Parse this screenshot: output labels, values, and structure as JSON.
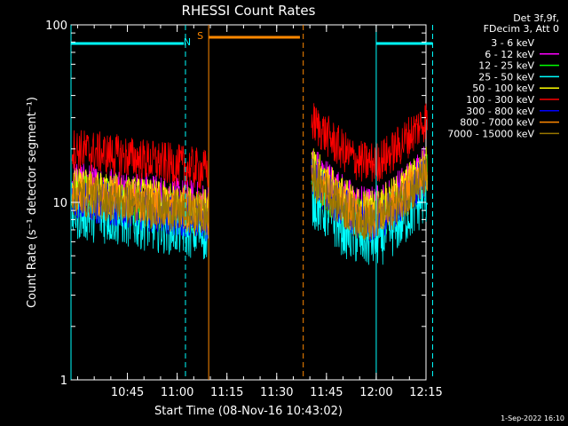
{
  "chart_data": {
    "type": "line",
    "title": "RHESSI Count Rates",
    "xlabel": "Start Time (08-Nov-16 10:43:02)",
    "ylabel": "Count Rate (s⁻¹ detector segment⁻¹)",
    "y_scale": "log",
    "ylim": [
      1,
      100
    ],
    "xlim_minutes": [
      628,
      735
    ],
    "x_ticks": [
      {
        "label": "10:45",
        "min": 645
      },
      {
        "label": "11:00",
        "min": 660
      },
      {
        "label": "11:15",
        "min": 675
      },
      {
        "label": "11:30",
        "min": 690
      },
      {
        "label": "11:45",
        "min": 705
      },
      {
        "label": "12:00",
        "min": 720
      },
      {
        "label": "12:15",
        "min": 735
      }
    ],
    "y_ticks": [
      {
        "label": "1",
        "value": 1
      },
      {
        "label": "10",
        "value": 10
      },
      {
        "label": "100",
        "value": 100
      }
    ],
    "legend_header": [
      "Det 3f,9f,",
      "FDecim 3, Att 0"
    ],
    "legend_position": "top-right, outside plot",
    "series": [
      {
        "name": "3 - 6 keV",
        "color": "#000000",
        "before": 8.0,
        "after": 10.5
      },
      {
        "name": "6 - 12 keV",
        "color": "#ff00ff",
        "before": 13.0,
        "after": 13.0
      },
      {
        "name": "12 - 25 keV",
        "color": "#00ff00",
        "before": 11.0,
        "after": 11.0
      },
      {
        "name": "25 - 50 keV",
        "color": "#00ffff",
        "before": 9.0,
        "after": 8.5
      },
      {
        "name": "50 - 100 keV",
        "color": "#ffff00",
        "before": 12.0,
        "after": 12.5
      },
      {
        "name": "100 - 300 keV",
        "color": "#ff0000",
        "before": 20.0,
        "after": 23.0
      },
      {
        "name": "300 - 800 keV",
        "color": "#0000ff",
        "before": 10.5,
        "after": 11.0
      },
      {
        "name": "800 - 7000 keV",
        "color": "#ff8800",
        "before": 11.5,
        "after": 11.5
      },
      {
        "name": "7000 - 15000 keV",
        "color": "#997700",
        "before": 11.0,
        "after": 11.0
      }
    ],
    "data_gap_minutes": [
      669.5,
      700.5
    ],
    "night_bars": [
      {
        "label": "N",
        "color": "#00ffff",
        "start": 628,
        "end": 662,
        "solid_line": 628,
        "dashed_line": 662.5
      },
      {
        "label": "",
        "color": "#00ffff",
        "start": 720,
        "end": 737,
        "solid_line": 720,
        "dashed_line": 737
      }
    ],
    "saa_bar": {
      "label": "S",
      "color": "#ff8800",
      "start": 669.5,
      "end": 697,
      "solid_line": 669.5,
      "dashed_line": 698
    },
    "footer_date": "1-Sep-2022 16:10"
  }
}
